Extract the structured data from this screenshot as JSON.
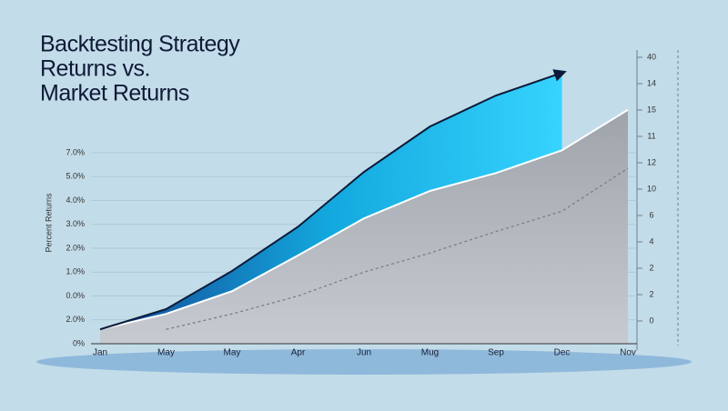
{
  "chart_data": {
    "type": "area",
    "title_lines": [
      "Backtesting Strategy",
      "Returns vs.",
      "Market Returns"
    ],
    "y_axis_label": "Percent Returns",
    "left_axis_labels": [
      "7.0%",
      "5.0%",
      "4.0%",
      "3.0%",
      "2.0%",
      "1.0%",
      "0.0%",
      "2.0%",
      "0%"
    ],
    "right_axis_labels": [
      "40",
      "14",
      "15",
      "11",
      "12",
      "10",
      "6",
      "4",
      "2",
      "2",
      "0"
    ],
    "categories": [
      "Jan",
      "May",
      "May",
      "Apr",
      "Jun",
      "Mug",
      "Sep",
      "Dec",
      "Nov"
    ],
    "ylim": [
      0,
      12
    ],
    "grid": true,
    "series": [
      {
        "color": "#0b1a3a",
        "values": [
          0.6,
          1.45,
          3.05,
          4.9,
          7.2,
          9.1,
          10.4,
          11.35,
          null
        ]
      },
      {
        "color": "#ffffff",
        "values": [
          0.6,
          1.25,
          2.2,
          3.7,
          5.25,
          6.4,
          7.15,
          8.1,
          9.8
        ]
      },
      {
        "color": "#7a7f88",
        "values": [
          null,
          0.6,
          1.25,
          2.0,
          3.0,
          3.8,
          4.7,
          5.55,
          7.35
        ]
      }
    ]
  }
}
